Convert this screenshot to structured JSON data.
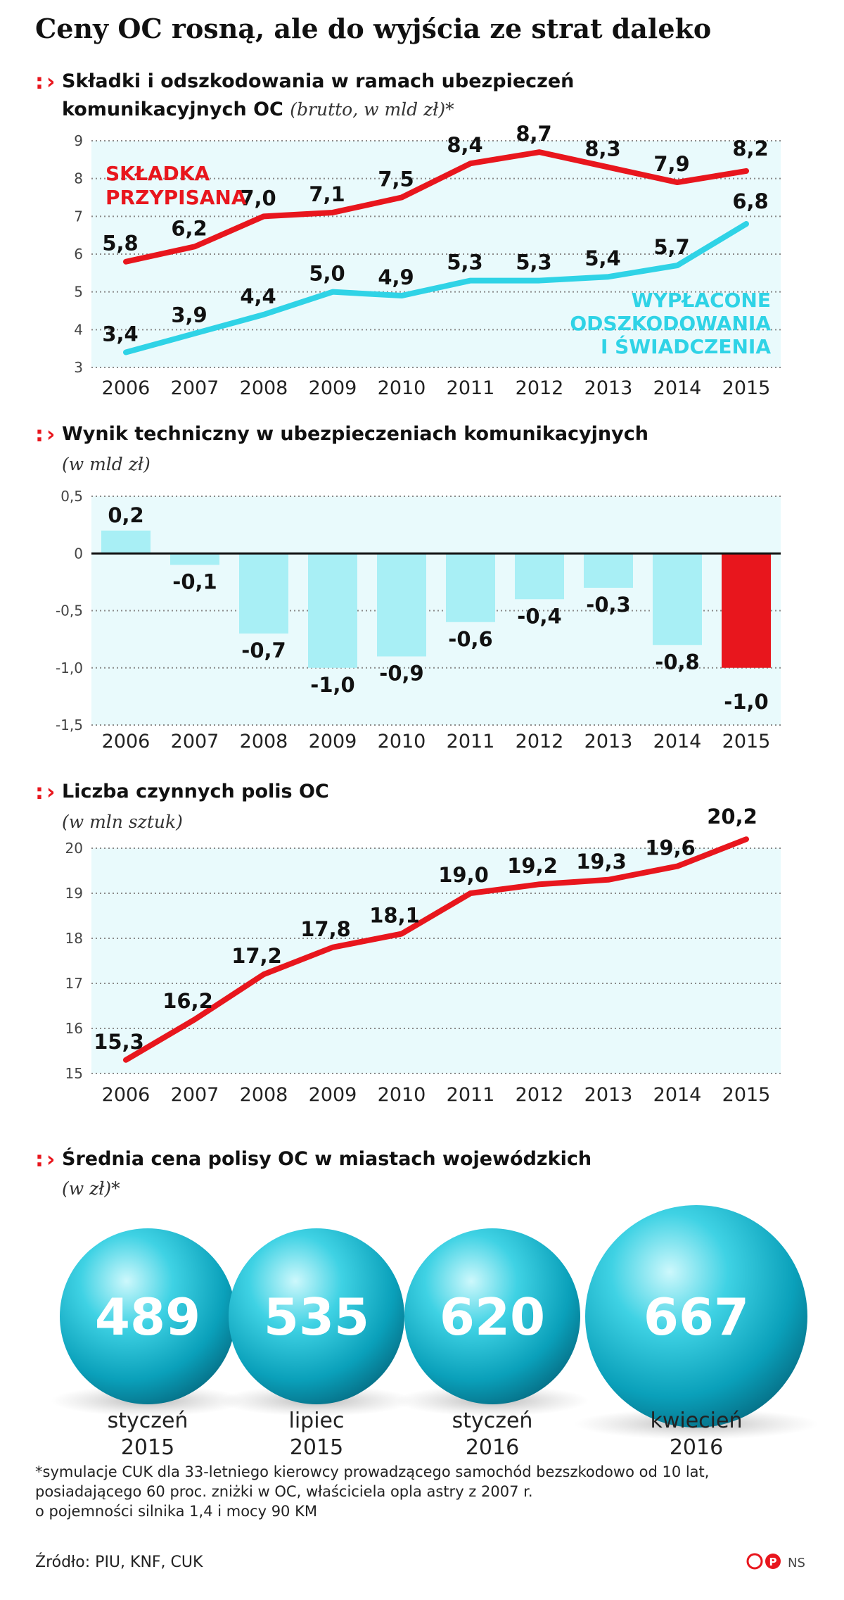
{
  "title": "Ceny OC rosną, ale do wyjścia ze strat daleko",
  "colors": {
    "red": "#e8161d",
    "cyan": "#2fd3e6",
    "bar_cyan": "#a8eff5",
    "grid": "#8a8a8a",
    "band": "#e9fafc"
  },
  "chart_data": [
    {
      "type": "line",
      "title": "Składki i odszkodowania w ramach ubezpieczeń komunikacyjnych OC",
      "subtitle": "(brutto, w mld zł)*",
      "x": [
        "2006",
        "2007",
        "2008",
        "2009",
        "2010",
        "2011",
        "2012",
        "2013",
        "2014",
        "2015"
      ],
      "ylim": [
        3,
        9
      ],
      "yticks": [
        "3",
        "4",
        "5",
        "6",
        "7",
        "8",
        "9"
      ],
      "series": [
        {
          "name": "SKŁADKA PRZYPISANA",
          "color": "#e8161d",
          "values": [
            5.8,
            6.2,
            7.0,
            7.1,
            7.5,
            8.4,
            8.7,
            8.3,
            7.9,
            8.2
          ],
          "labels": [
            "5,8",
            "6,2",
            "7,0",
            "7,1",
            "7,5",
            "8,4",
            "8,7",
            "8,3",
            "7,9",
            "8,2"
          ]
        },
        {
          "name": "WYPŁACONE ODSZKODOWANIA I ŚWIADCZENIA",
          "color": "#2fd3e6",
          "values": [
            3.4,
            3.9,
            4.4,
            5.0,
            4.9,
            5.3,
            5.3,
            5.4,
            5.7,
            6.8
          ],
          "labels": [
            "3,4",
            "3,9",
            "4,4",
            "5,0",
            "4,9",
            "5,3",
            "5,3",
            "5,4",
            "5,7",
            "6,8"
          ]
        }
      ],
      "grid": true
    },
    {
      "type": "bar",
      "title": "Wynik techniczny w ubezpieczeniach komunikacyjnych",
      "subtitle": "(w mld zł)",
      "categories": [
        "2006",
        "2007",
        "2008",
        "2009",
        "2010",
        "2011",
        "2012",
        "2013",
        "2014",
        "2015"
      ],
      "values": [
        0.2,
        -0.1,
        -0.7,
        -1.0,
        -0.9,
        -0.6,
        -0.4,
        -0.3,
        -0.8,
        -1.0
      ],
      "labels": [
        "0,2",
        "-0,1",
        "-0,7",
        "-1,0",
        "-0,9",
        "-0,6",
        "-0,4",
        "-0,3",
        "-0,8",
        "-1,0"
      ],
      "ylim": [
        -1.5,
        0.5
      ],
      "yticks": [
        "-1,5",
        "-1,0",
        "-0,5",
        "0",
        "0,5"
      ],
      "grid": true
    },
    {
      "type": "line",
      "title": "Liczba czynnych polis OC",
      "subtitle": "(w mln sztuk)",
      "x": [
        "2006",
        "2007",
        "2008",
        "2009",
        "2010",
        "2011",
        "2012",
        "2013",
        "2014",
        "2015"
      ],
      "ylim": [
        15,
        20
      ],
      "yticks": [
        "15",
        "16",
        "17",
        "18",
        "19",
        "20"
      ],
      "series": [
        {
          "color": "#e8161d",
          "values": [
            15.3,
            16.2,
            17.2,
            17.8,
            18.1,
            19.0,
            19.2,
            19.3,
            19.6,
            20.2
          ],
          "labels": [
            "15,3",
            "16,2",
            "17,2",
            "17,8",
            "18,1",
            "19,0",
            "19,2",
            "19,3",
            "19,6",
            "20,2"
          ]
        }
      ],
      "grid": true
    }
  ],
  "bubbles": {
    "title": "Średnia cena polisy OC w miastach wojewódzkich",
    "subtitle": "(w zł)*",
    "items": [
      {
        "value": "489",
        "month": "styczeń",
        "year": "2015"
      },
      {
        "value": "535",
        "month": "lipiec",
        "year": "2015"
      },
      {
        "value": "620",
        "month": "styczeń",
        "year": "2016"
      },
      {
        "value": "667",
        "month": "kwiecień",
        "year": "2016"
      }
    ]
  },
  "footnote": [
    "*symulacje CUK dla 33-letniego kierowcy prowadzącego samochód bezszkodowo od 10 lat,",
    "posiadającego 60 proc. zniżki w OC, właściciela opla astry z 2007 r.",
    "o pojemności silnika 1,4 i mocy 90 KM"
  ],
  "source": "Źródło: PIU, KNF, CUK",
  "credit": "NS"
}
